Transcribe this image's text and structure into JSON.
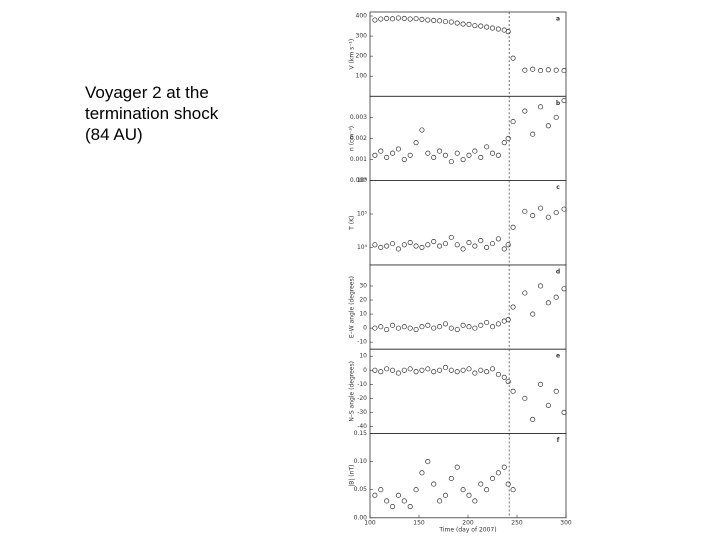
{
  "caption": [
    "Voyager 2 at the",
    "termination shock",
    "(84 AU)"
  ],
  "chart_data": [
    {
      "type": "scatter",
      "label": "a",
      "ylabel": "V (km s⁻¹)",
      "color": "#333333",
      "x": [
        105,
        111,
        117,
        123,
        129,
        135,
        141,
        147,
        153,
        159,
        165,
        171,
        177,
        183,
        189,
        195,
        201,
        207,
        213,
        219,
        225,
        231,
        237,
        241,
        246,
        258,
        266,
        274,
        282,
        290,
        298
      ],
      "values": [
        380,
        385,
        388,
        386,
        390,
        388,
        385,
        387,
        383,
        380,
        378,
        376,
        372,
        370,
        365,
        360,
        358,
        352,
        350,
        345,
        340,
        335,
        330,
        322,
        190,
        130,
        135,
        128,
        132,
        130,
        128
      ],
      "xlim": [
        100,
        300
      ],
      "ylim": [
        0,
        420
      ],
      "yticks": [
        100,
        200,
        300,
        400
      ],
      "vline_x": 242
    },
    {
      "type": "scatter",
      "label": "b",
      "ylabel": "n (cm⁻³)",
      "color": "#333333",
      "x": [
        105,
        111,
        117,
        123,
        129,
        135,
        141,
        147,
        153,
        159,
        165,
        171,
        177,
        183,
        189,
        195,
        201,
        207,
        213,
        219,
        225,
        231,
        237,
        241,
        246,
        258,
        266,
        274,
        282,
        290,
        298
      ],
      "values": [
        0.0012,
        0.0014,
        0.0011,
        0.0013,
        0.0015,
        0.001,
        0.0012,
        0.0018,
        0.0024,
        0.0013,
        0.0011,
        0.0014,
        0.0012,
        0.0009,
        0.0013,
        0.001,
        0.0012,
        0.0014,
        0.0011,
        0.0016,
        0.0013,
        0.0012,
        0.0018,
        0.002,
        0.0028,
        0.0033,
        0.0022,
        0.0035,
        0.0026,
        0.003,
        0.0038
      ],
      "xlim": [
        100,
        300
      ],
      "ylim": [
        0,
        0.004
      ],
      "yticks": [
        {
          "value": 0,
          "label": "0.000"
        },
        {
          "value": 0.001,
          "label": "0.001"
        },
        {
          "value": 0.002,
          "label": "0.002"
        },
        {
          "value": 0.003,
          "label": "0.003"
        }
      ],
      "vline_x": 242
    },
    {
      "type": "scatter",
      "label": "c",
      "ylabel": "T (K)",
      "color": "#333333",
      "yscale": "log",
      "x": [
        105,
        111,
        117,
        123,
        129,
        135,
        141,
        147,
        153,
        159,
        165,
        171,
        177,
        183,
        189,
        195,
        201,
        207,
        213,
        219,
        225,
        231,
        237,
        241,
        246,
        258,
        266,
        274,
        282,
        290,
        298
      ],
      "values": [
        12000,
        10000,
        11000,
        13000,
        9000,
        12000,
        14000,
        11000,
        10000,
        12000,
        15000,
        11000,
        13000,
        20000,
        12000,
        9000,
        14000,
        11000,
        16000,
        10000,
        13000,
        18000,
        9000,
        12000,
        40000,
        120000,
        90000,
        150000,
        80000,
        110000,
        140000
      ],
      "xlim": [
        100,
        300
      ],
      "ylim": [
        3000,
        1000000
      ],
      "yticks": [
        {
          "value": 10000,
          "label": "10⁴"
        },
        {
          "value": 100000,
          "label": "10⁵"
        },
        {
          "value": 1000000,
          "label": "10⁶"
        }
      ],
      "vline_x": 242
    },
    {
      "type": "scatter",
      "label": "d",
      "ylabel": "E–W angle (degrees)",
      "color": "#333333",
      "x": [
        105,
        111,
        117,
        123,
        129,
        135,
        141,
        147,
        153,
        159,
        165,
        171,
        177,
        183,
        189,
        195,
        201,
        207,
        213,
        219,
        225,
        231,
        237,
        241,
        246,
        258,
        266,
        274,
        282,
        290,
        298
      ],
      "values": [
        0,
        1,
        -1,
        2,
        0,
        1,
        0,
        -1,
        1,
        2,
        0,
        1,
        3,
        0,
        -1,
        2,
        1,
        0,
        2,
        4,
        1,
        3,
        5,
        6,
        15,
        25,
        10,
        30,
        18,
        22,
        28
      ],
      "xlim": [
        100,
        300
      ],
      "ylim": [
        -15,
        45
      ],
      "yticks": [
        -10,
        0,
        10,
        20,
        30
      ],
      "vline_x": 242
    },
    {
      "type": "scatter",
      "label": "e",
      "ylabel": "N–S angle (degrees)",
      "color": "#333333",
      "x": [
        105,
        111,
        117,
        123,
        129,
        135,
        141,
        147,
        153,
        159,
        165,
        171,
        177,
        183,
        189,
        195,
        201,
        207,
        213,
        219,
        225,
        231,
        237,
        241,
        246,
        258,
        266,
        274,
        282,
        290,
        298
      ],
      "values": [
        0,
        -1,
        1,
        0,
        -2,
        0,
        1,
        -1,
        0,
        1,
        -1,
        0,
        2,
        0,
        -1,
        0,
        1,
        -2,
        0,
        -1,
        1,
        -3,
        -5,
        -8,
        -15,
        -20,
        -35,
        -10,
        -25,
        -15,
        -30
      ],
      "xlim": [
        100,
        300
      ],
      "ylim": [
        -45,
        15
      ],
      "yticks": [
        -40,
        -30,
        -20,
        -10,
        0,
        10
      ],
      "vline_x": 242
    },
    {
      "type": "scatter",
      "label": "f",
      "ylabel": "|B| (nT)",
      "xlabel": "Time (day of 2007)",
      "color": "#333333",
      "x": [
        105,
        111,
        117,
        123,
        129,
        135,
        141,
        147,
        153,
        159,
        165,
        171,
        177,
        183,
        189,
        195,
        201,
        207,
        213,
        219,
        225,
        231,
        237,
        241,
        246,
        258,
        266,
        274,
        282,
        290,
        298
      ],
      "values": [
        0.04,
        0.05,
        0.03,
        0.02,
        0.04,
        0.03,
        0.02,
        0.05,
        0.08,
        0.1,
        0.06,
        0.03,
        0.04,
        0.07,
        0.09,
        0.05,
        0.04,
        0.03,
        0.06,
        0.05,
        0.07,
        0.08,
        0.09,
        0.06,
        0.05,
        null,
        null,
        null,
        null,
        null,
        null
      ],
      "xlim": [
        100,
        300
      ],
      "xticks": [
        100,
        150,
        200,
        250,
        300
      ],
      "ylim": [
        0,
        0.15
      ],
      "yticks": [
        {
          "value": 0,
          "label": "0.00"
        },
        {
          "value": 0.05,
          "label": "0.05"
        },
        {
          "value": 0.1,
          "label": "0.10"
        },
        {
          "value": 0.15,
          "label": "0.15"
        }
      ],
      "vline_x": 242
    }
  ]
}
